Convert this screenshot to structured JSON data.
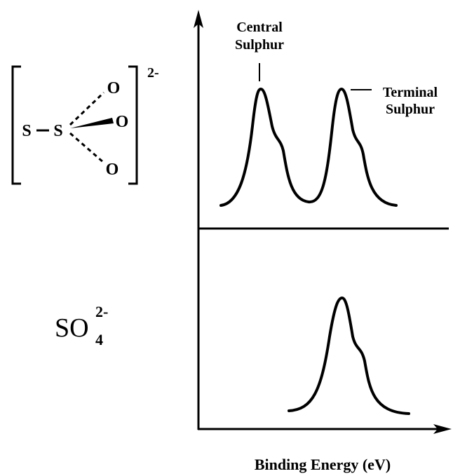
{
  "structure": {
    "atoms": [
      "S",
      "S",
      "O",
      "O",
      "O"
    ],
    "charge": "2-"
  },
  "sulfate": {
    "formula": "SO",
    "subscript": "4",
    "charge": "2-"
  },
  "annotations": {
    "central": [
      "Central",
      "Sulphur"
    ],
    "terminal": [
      "Terminal",
      "Sulphur"
    ]
  },
  "x_axis_label": "Binding Energy (eV)"
}
